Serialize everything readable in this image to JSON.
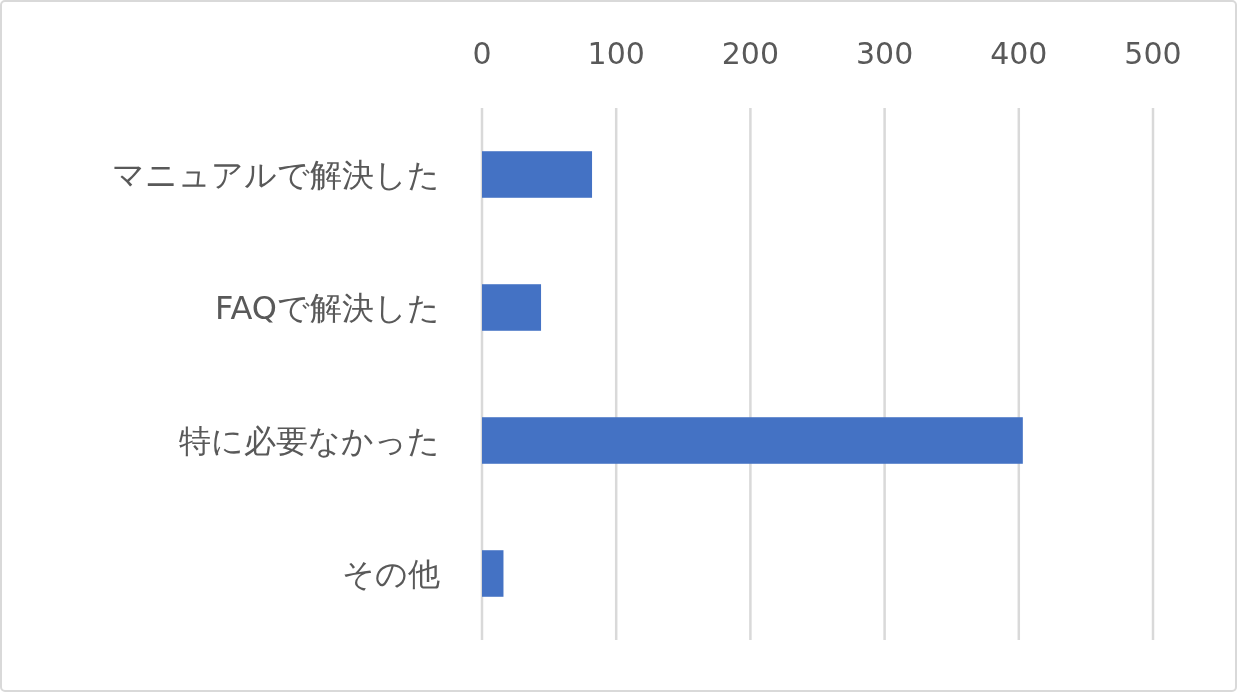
{
  "chart_data": {
    "type": "bar",
    "orientation": "horizontal",
    "categories": [
      "マニュアルで解決した",
      "FAQで解決した",
      "特に必要なかった",
      "その他"
    ],
    "values": [
      82,
      44,
      403,
      16
    ],
    "color": "#4472c4",
    "xlim": [
      0,
      500
    ],
    "xticks": [
      0,
      100,
      200,
      300,
      400,
      500
    ],
    "grid": "x"
  }
}
